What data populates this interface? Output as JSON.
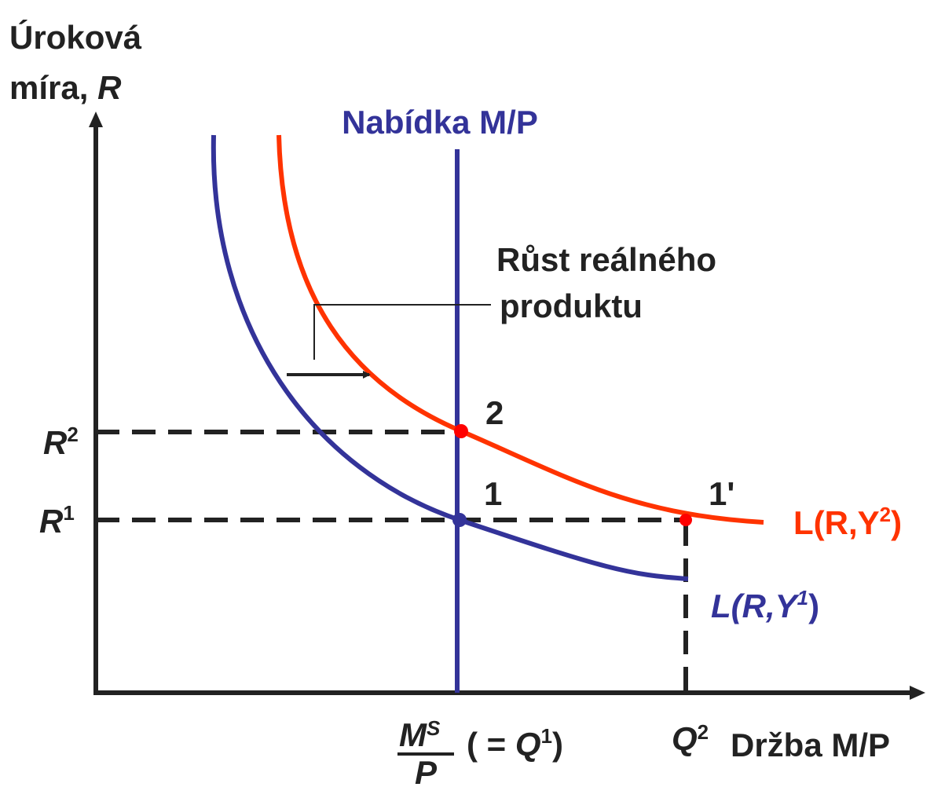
{
  "y_axis_label": {
    "line1": "Úroková",
    "line2_text": "míra, ",
    "line2_var": "R"
  },
  "supply_label": "Nabídka M/P",
  "annotation": {
    "line1": "Růst reálného",
    "line2": "produktu"
  },
  "points": {
    "p2": "2",
    "p1": "1",
    "p1_prime": "1'"
  },
  "r2_label": {
    "base": "R",
    "sup": "2"
  },
  "r1_label": {
    "base": "R",
    "sup": "1"
  },
  "curve_y2": {
    "text": "L(R,Y",
    "sup": "2",
    "close": ")"
  },
  "curve_y1": {
    "text": "L(R,Y",
    "sup": "1",
    "close": ")"
  },
  "x_supply_label": {
    "num": "M",
    "num_sup": "S",
    "den": "P",
    "paren_open": "( = ",
    "q": "Q",
    "q_sup": "1",
    "paren_close": ")"
  },
  "q2_label": {
    "base": "Q",
    "sup": "2"
  },
  "x_axis_label": "Držba M/P"
}
